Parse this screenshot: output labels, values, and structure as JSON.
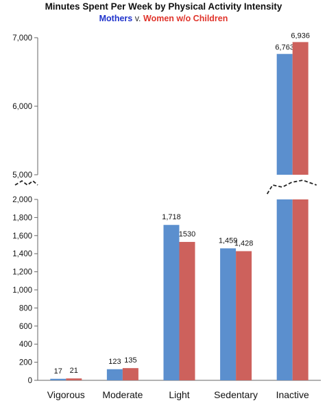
{
  "title": "Minutes Spent Per Week by Physical Activity Intensity",
  "subtitle": {
    "series_a": "Mothers",
    "separator": "v.",
    "series_b": "Women w/o Children"
  },
  "chart_data": {
    "type": "bar",
    "title": "Minutes Spent Per Week by Physical Activity Intensity",
    "categories": [
      "Vigorous",
      "Moderate",
      "Light",
      "Sedentary",
      "Inactive"
    ],
    "series": [
      {
        "name": "Mothers",
        "color": "#5b8fce",
        "values": [
          17,
          123,
          1718,
          1459,
          6763
        ],
        "labels": [
          "17",
          "123",
          "1,718",
          "1,459",
          "6,763"
        ]
      },
      {
        "name": "Women w/o Children",
        "color": "#cd615c",
        "values": [
          21,
          135,
          1530,
          1428,
          6936
        ],
        "labels": [
          "21",
          "135",
          "1530",
          "1,428",
          "6,936"
        ]
      }
    ],
    "axis_break": true,
    "lower_ylim": [
      0,
      2000
    ],
    "upper_ylim": [
      5000,
      7000
    ],
    "lower_ticks": [
      "0",
      "200",
      "400",
      "600",
      "800",
      "1,000",
      "1,200",
      "1,400",
      "1,600",
      "1,800",
      "2,000"
    ],
    "upper_ticks": [
      "5,000",
      "6,000",
      "7,000"
    ],
    "grid": false,
    "legend": "subtitle"
  }
}
